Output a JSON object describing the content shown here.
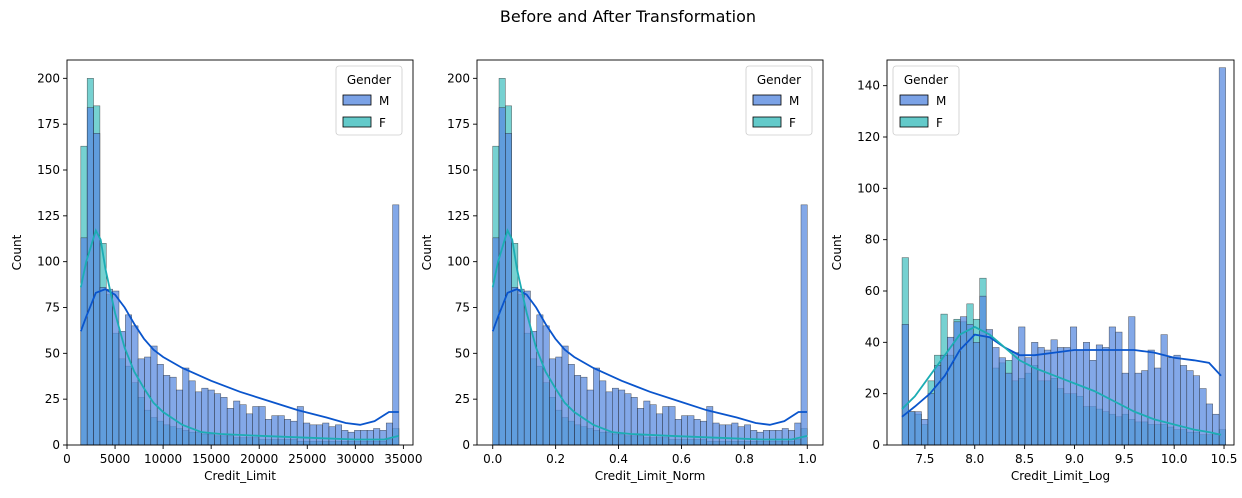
{
  "suptitle": "Before and After Transformation",
  "colors": {
    "M": "#5a8be0",
    "F": "#3cbdbd",
    "M_kde": "#0a55cc",
    "F_kde": "#1cadb4"
  },
  "chart_data": [
    {
      "type": "histogram",
      "xlabel": "Credit_Limit",
      "ylabel": "Count",
      "xlim": [
        0,
        36000
      ],
      "ylim": [
        0,
        210
      ],
      "xticks": [
        0,
        5000,
        10000,
        15000,
        20000,
        25000,
        30000,
        35000
      ],
      "yticks": [
        0,
        25,
        50,
        75,
        100,
        125,
        150,
        175,
        200
      ],
      "bin_start": 1438,
      "bin_width": 662,
      "legend": {
        "title": "Gender",
        "entries": [
          "M",
          "F"
        ],
        "loc": "upper right"
      },
      "series": [
        {
          "name": "M",
          "counts": [
            113,
            184,
            170,
            86,
            85,
            84,
            62,
            71,
            65,
            47,
            48,
            54,
            44,
            38,
            37,
            30,
            42,
            35,
            29,
            31,
            30,
            28,
            26,
            20,
            24,
            22,
            17,
            21,
            21,
            14,
            16,
            16,
            14,
            13,
            21,
            12,
            11,
            11,
            12,
            10,
            11,
            8,
            7,
            8,
            8,
            8,
            9,
            8,
            12,
            131
          ]
        },
        {
          "name": "F",
          "counts": [
            163,
            200,
            185,
            110,
            82,
            61,
            47,
            43,
            34,
            26,
            19,
            15,
            13,
            11,
            10,
            9,
            8,
            7,
            7,
            6,
            6,
            5,
            5,
            5,
            4,
            4,
            4,
            4,
            3,
            3,
            3,
            3,
            3,
            3,
            2,
            2,
            2,
            2,
            2,
            2,
            2,
            2,
            2,
            2,
            2,
            2,
            2,
            2,
            3,
            9
          ]
        }
      ],
      "kde": [
        {
          "name": "M",
          "x": [
            1438,
            2000,
            3000,
            4000,
            5000,
            6000,
            7000,
            8000,
            9000,
            10000,
            12000,
            15000,
            18000,
            21000,
            24000,
            27000,
            29000,
            30500,
            32000,
            33500,
            34516
          ],
          "y": [
            62,
            70,
            83,
            85,
            82,
            75,
            66,
            58,
            52,
            48,
            42,
            35,
            29,
            24,
            19,
            15,
            12,
            11,
            13,
            18,
            18
          ]
        },
        {
          "name": "F",
          "x": [
            1438,
            2000,
            3000,
            3500,
            4000,
            5000,
            6000,
            7000,
            8000,
            9000,
            10000,
            12000,
            14000,
            16000,
            20000,
            25000,
            30000,
            33000,
            34516
          ],
          "y": [
            86,
            100,
            117,
            112,
            96,
            72,
            53,
            40,
            31,
            23,
            18,
            11,
            7,
            6,
            5,
            4,
            3,
            3,
            5
          ]
        }
      ]
    },
    {
      "type": "histogram",
      "xlabel": "Credit_Limit_Norm",
      "ylabel": "Count",
      "xlim": [
        -0.05,
        1.05
      ],
      "ylim": [
        0,
        210
      ],
      "xticks": [
        0.0,
        0.2,
        0.4,
        0.6,
        0.8,
        1.0
      ],
      "yticks": [
        0,
        25,
        50,
        75,
        100,
        125,
        150,
        175,
        200
      ],
      "bin_start": 0.0,
      "bin_width": 0.02,
      "legend": {
        "title": "Gender",
        "entries": [
          "M",
          "F"
        ],
        "loc": "upper right"
      },
      "series": [
        {
          "name": "M",
          "counts": [
            113,
            184,
            170,
            86,
            85,
            84,
            62,
            71,
            65,
            47,
            48,
            54,
            44,
            38,
            37,
            30,
            42,
            35,
            29,
            31,
            30,
            28,
            26,
            20,
            24,
            22,
            17,
            21,
            21,
            14,
            16,
            16,
            14,
            13,
            21,
            12,
            11,
            11,
            12,
            10,
            11,
            8,
            7,
            8,
            8,
            8,
            9,
            8,
            12,
            131
          ]
        },
        {
          "name": "F",
          "counts": [
            163,
            200,
            185,
            110,
            82,
            61,
            47,
            43,
            34,
            26,
            19,
            15,
            13,
            11,
            10,
            9,
            8,
            7,
            7,
            6,
            6,
            5,
            5,
            5,
            4,
            4,
            4,
            4,
            3,
            3,
            3,
            3,
            3,
            3,
            2,
            2,
            2,
            2,
            2,
            2,
            2,
            2,
            2,
            2,
            2,
            2,
            2,
            2,
            3,
            9
          ]
        }
      ],
      "kde": [
        {
          "name": "M",
          "x": [
            0.0,
            0.017,
            0.047,
            0.077,
            0.108,
            0.138,
            0.168,
            0.199,
            0.229,
            0.259,
            0.32,
            0.41,
            0.5,
            0.59,
            0.68,
            0.776,
            0.836,
            0.881,
            0.927,
            0.972,
            1.0
          ],
          "y": [
            62,
            70,
            83,
            85,
            82,
            75,
            66,
            58,
            52,
            48,
            42,
            35,
            29,
            24,
            19,
            15,
            12,
            11,
            13,
            18,
            18
          ]
        },
        {
          "name": "F",
          "x": [
            0.0,
            0.017,
            0.047,
            0.062,
            0.077,
            0.108,
            0.138,
            0.168,
            0.199,
            0.229,
            0.259,
            0.32,
            0.38,
            0.44,
            0.56,
            0.71,
            0.86,
            0.95,
            1.0
          ],
          "y": [
            86,
            100,
            117,
            112,
            96,
            72,
            53,
            40,
            31,
            23,
            18,
            11,
            7,
            6,
            5,
            4,
            3,
            3,
            5
          ]
        }
      ]
    },
    {
      "type": "histogram",
      "xlabel": "Credit_Limit_Log",
      "ylabel": "Count",
      "xlim": [
        7.12,
        10.6
      ],
      "ylim": [
        0,
        150
      ],
      "xticks": [
        7.5,
        8.0,
        8.5,
        9.0,
        9.5,
        10.0,
        10.5
      ],
      "yticks": [
        0,
        20,
        40,
        60,
        80,
        100,
        120,
        140
      ],
      "bin_start": 7.271,
      "bin_width": 0.0649,
      "legend": {
        "title": "Gender",
        "entries": [
          "M",
          "F"
        ],
        "loc": "upper left"
      },
      "series": [
        {
          "name": "M",
          "counts": [
            47,
            13,
            13,
            10,
            20,
            31,
            35,
            42,
            48,
            50,
            47,
            40,
            58,
            45,
            38,
            34,
            28,
            36,
            46,
            34,
            40,
            38,
            37,
            41,
            38,
            38,
            46,
            37,
            40,
            33,
            39,
            38,
            46,
            44,
            28,
            50,
            28,
            29,
            37,
            30,
            43,
            34,
            35,
            31,
            29,
            27,
            22,
            16,
            12,
            147
          ]
        },
        {
          "name": "F",
          "counts": [
            73,
            13,
            12,
            8,
            25,
            35,
            51,
            35,
            49,
            48,
            55,
            49,
            65,
            42,
            30,
            32,
            33,
            25,
            26,
            28,
            31,
            25,
            25,
            26,
            22,
            20,
            20,
            19,
            15,
            15,
            14,
            13,
            12,
            11,
            12,
            10,
            9,
            9,
            8,
            8,
            8,
            7,
            6,
            6,
            5,
            5,
            4,
            4,
            4,
            6
          ]
        }
      ],
      "kde": [
        {
          "name": "M",
          "x": [
            7.27,
            7.4,
            7.55,
            7.7,
            7.85,
            8.0,
            8.15,
            8.3,
            8.45,
            8.6,
            8.8,
            9.0,
            9.2,
            9.4,
            9.6,
            9.8,
            10.0,
            10.2,
            10.35,
            10.47
          ],
          "y": [
            11,
            15,
            20,
            27,
            37,
            43,
            42,
            38,
            35,
            35,
            36,
            37,
            37,
            37,
            37,
            36,
            34,
            33,
            32,
            27
          ]
        },
        {
          "name": "F",
          "x": [
            7.27,
            7.4,
            7.55,
            7.7,
            7.85,
            8.0,
            8.15,
            8.3,
            8.45,
            8.6,
            8.8,
            9.0,
            9.2,
            9.4,
            9.6,
            9.8,
            10.0,
            10.2,
            10.35,
            10.47
          ],
          "y": [
            14,
            19,
            27,
            35,
            43,
            46,
            43,
            38,
            33,
            30,
            27,
            24,
            21,
            17,
            13,
            10,
            8,
            6,
            5,
            4
          ]
        }
      ]
    }
  ]
}
